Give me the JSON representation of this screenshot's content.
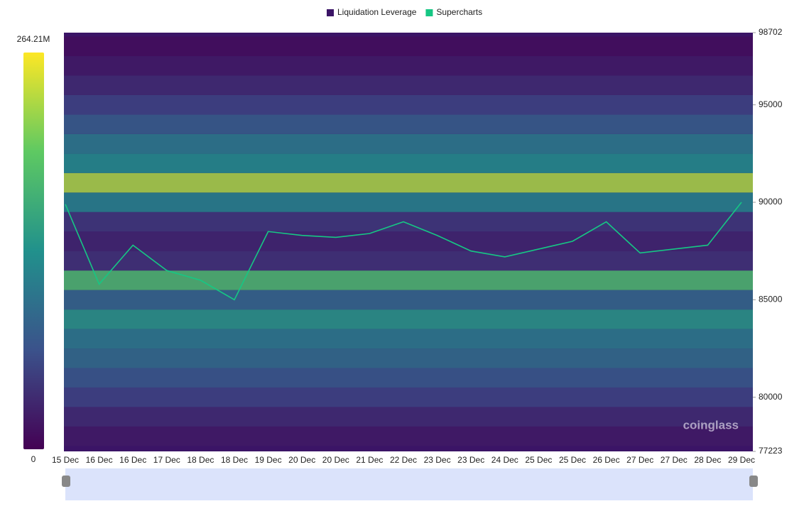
{
  "chart_data": {
    "type": "heatmap",
    "watermark": "coinglass",
    "categories": [
      "15 Dec",
      "16 Dec",
      "16 Dec",
      "17 Dec",
      "18 Dec",
      "18 Dec",
      "19 Dec",
      "20 Dec",
      "20 Dec",
      "21 Dec",
      "22 Dec",
      "23 Dec",
      "23 Dec",
      "24 Dec",
      "25 Dec",
      "25 Dec",
      "26 Dec",
      "27 Dec",
      "27 Dec",
      "28 Dec",
      "29 Dec"
    ],
    "ylim": [
      77223,
      98702
    ],
    "yticks": [
      77223,
      80000,
      85000,
      90000,
      95000,
      98702
    ],
    "colorbar_lim": [
      0,
      {
        "value": 264210000,
        "label": "264.21M"
      }
    ],
    "series": [
      {
        "name": "Liquidation Leverage",
        "color": "#3b1466",
        "levels": [
          78000,
          79000,
          80000,
          81000,
          82000,
          83000,
          84000,
          85000,
          86000,
          87000,
          88000,
          89000,
          90000,
          91000,
          92000,
          93000,
          94000,
          95000,
          96000,
          97000,
          98000
        ],
        "values": [
          20000000,
          35000000,
          55000000,
          75000000,
          95000000,
          110000000,
          140000000,
          90000000,
          180000000,
          40000000,
          30000000,
          45000000,
          120000000,
          230000000,
          130000000,
          110000000,
          80000000,
          55000000,
          35000000,
          20000000,
          10000000
        ]
      },
      {
        "name": "Supercharts",
        "color": "#16c784",
        "values": [
          89900,
          85800,
          87800,
          86500,
          86000,
          85000,
          88500,
          88300,
          88200,
          88400,
          89000,
          88300,
          87500,
          87200,
          87600,
          88000,
          89000,
          87400,
          87600,
          87800,
          90000
        ]
      }
    ]
  }
}
